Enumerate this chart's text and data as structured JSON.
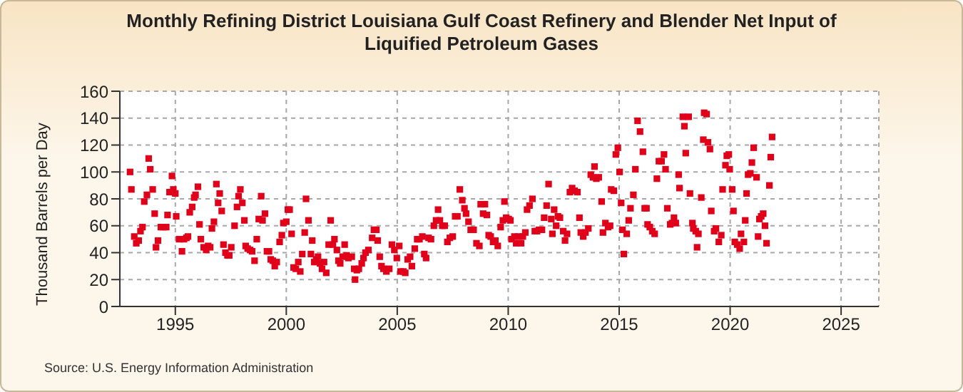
{
  "chart_data": {
    "type": "scatter",
    "title": "Monthly Refining District Louisiana Gulf Coast Refinery and Blender Net Input of Liquified Petroleum Gases",
    "ylabel": "Thousand Barrels per Day",
    "annotations": [
      "Source: U.S. Energy Information Administration"
    ],
    "color": "#e0001a",
    "marker": "square",
    "grid": true,
    "xlim": [
      1992.5,
      2026.7
    ],
    "xticks": [
      1995,
      2000,
      2005,
      2010,
      2015,
      2020,
      2025
    ],
    "ylim": [
      0,
      160
    ],
    "yticks": [
      0,
      20,
      40,
      60,
      80,
      100,
      120,
      140,
      160
    ],
    "x": [
      1992.96,
      1993.02,
      1993.15,
      1993.24,
      1993.35,
      1993.43,
      1993.52,
      1993.6,
      1993.72,
      1993.8,
      1993.87,
      1993.98,
      1994.07,
      1994.13,
      1994.22,
      1994.35,
      1994.46,
      1994.59,
      1994.65,
      1994.74,
      1994.85,
      1994.91,
      1995.0,
      1995.04,
      1995.17,
      1995.3,
      1995.39,
      1995.5,
      1995.57,
      1995.65,
      1995.76,
      1995.85,
      1995.91,
      1996.02,
      1996.09,
      1996.15,
      1996.28,
      1996.39,
      1996.48,
      1996.57,
      1996.65,
      1996.74,
      1996.85,
      1996.93,
      1997.0,
      1997.09,
      1997.17,
      1997.26,
      1997.35,
      1997.43,
      1997.52,
      1997.67,
      1997.78,
      1997.85,
      1997.93,
      1998.02,
      1998.11,
      1998.17,
      1998.26,
      1998.37,
      1998.46,
      1998.57,
      1998.67,
      1998.76,
      1998.87,
      1998.93,
      1999.04,
      1999.13,
      1999.22,
      1999.3,
      1999.39,
      1999.48,
      1999.57,
      1999.7,
      1999.8,
      1999.87,
      2000.0,
      2000.07,
      2000.15,
      2000.24,
      2000.33,
      2000.43,
      2000.54,
      2000.63,
      2000.72,
      2000.83,
      2000.89,
      2001.0,
      2001.11,
      2001.17,
      2001.26,
      2001.35,
      2001.43,
      2001.52,
      2001.61,
      2001.7,
      2001.8,
      2001.91,
      2002.0,
      2002.1,
      2002.17,
      2002.28,
      2002.35,
      2002.43,
      2002.54,
      2002.63,
      2002.72,
      2002.8,
      2002.95,
      2003.06,
      2003.1,
      2003.18,
      2003.27,
      2003.4,
      2003.48,
      2003.57,
      2003.7,
      2003.87,
      2003.95,
      2004.06,
      2004.12,
      2004.21,
      2004.29,
      2004.38,
      2004.51,
      2004.64,
      2004.76,
      2004.87,
      2004.98,
      2005.09,
      2005.15,
      2005.28,
      2005.36,
      2005.47,
      2005.58,
      2005.66,
      2005.79,
      2005.9,
      2006.0,
      2006.13,
      2006.22,
      2006.3,
      2006.41,
      2006.52,
      2006.65,
      2006.75,
      2006.84,
      2006.92,
      2007.03,
      2007.14,
      2007.26,
      2007.37,
      2007.5,
      2007.61,
      2007.71,
      2007.82,
      2007.93,
      2008.03,
      2008.1,
      2008.21,
      2008.31,
      2008.44,
      2008.57,
      2008.7,
      2008.76,
      2008.87,
      2008.95,
      2009.04,
      2009.12,
      2009.21,
      2009.32,
      2009.42,
      2009.53,
      2009.66,
      2009.76,
      2009.83,
      2009.91,
      2010.02,
      2010.1,
      2010.15,
      2010.28,
      2010.36,
      2010.47,
      2010.58,
      2010.66,
      2010.77,
      2010.85,
      2010.96,
      2011.09,
      2011.2,
      2011.3,
      2011.39,
      2011.52,
      2011.62,
      2011.73,
      2011.82,
      2011.94,
      2011.99,
      2012.07,
      2012.16,
      2012.24,
      2012.33,
      2012.48,
      2012.56,
      2012.65,
      2012.78,
      2012.88,
      2012.99,
      2013.12,
      2013.21,
      2013.27,
      2013.38,
      2013.48,
      2013.61,
      2013.72,
      2013.82,
      2013.89,
      2013.97,
      2014.08,
      2014.21,
      2014.27,
      2014.38,
      2014.5,
      2014.59,
      2014.64,
      2014.76,
      2014.85,
      2014.94,
      2015.02,
      2015.09,
      2015.15,
      2015.21,
      2015.34,
      2015.43,
      2015.51,
      2015.64,
      2015.73,
      2015.83,
      2015.94,
      2016.07,
      2016.15,
      2016.23,
      2016.28,
      2016.38,
      2016.49,
      2016.6,
      2016.7,
      2016.79,
      2016.91,
      2017.02,
      2017.09,
      2017.17,
      2017.3,
      2017.38,
      2017.47,
      2017.55,
      2017.68,
      2017.72,
      2017.87,
      2017.94,
      2018.0,
      2018.13,
      2018.19,
      2018.3,
      2018.34,
      2018.45,
      2018.51,
      2018.57,
      2018.7,
      2018.79,
      2018.83,
      2018.94,
      2019.0,
      2019.09,
      2019.15,
      2019.28,
      2019.36,
      2019.49,
      2019.6,
      2019.66,
      2019.79,
      2019.85,
      2019.94,
      2019.98,
      2020.09,
      2020.15,
      2020.21,
      2020.32,
      2020.43,
      2020.49,
      2020.62,
      2020.68,
      2020.74,
      2020.81,
      2020.91,
      2020.98,
      2021.06,
      2021.19,
      2021.26,
      2021.32,
      2021.4,
      2021.49,
      2021.57,
      2021.64,
      2021.77,
      2021.83,
      2021.89
    ],
    "values": [
      100,
      87,
      52,
      47,
      49,
      56,
      59,
      78,
      83,
      110,
      102,
      87,
      69,
      44,
      49,
      59,
      59,
      59,
      68,
      85,
      97,
      87,
      84,
      67,
      50,
      41,
      50,
      51,
      52,
      70,
      74,
      81,
      83,
      89,
      61,
      50,
      44,
      42,
      45,
      44,
      58,
      63,
      91,
      77,
      84,
      71,
      46,
      40,
      38,
      38,
      44,
      60,
      74,
      82,
      87,
      77,
      64,
      45,
      43,
      42,
      41,
      34,
      50,
      65,
      82,
      64,
      69,
      41,
      41,
      35,
      34,
      30,
      33,
      48,
      53,
      62,
      63,
      72,
      72,
      54,
      29,
      28,
      33,
      26,
      39,
      55,
      80,
      64,
      39,
      49,
      33,
      35,
      37,
      32,
      28,
      33,
      25,
      46,
      64,
      46,
      50,
      42,
      34,
      32,
      37,
      46,
      38,
      36,
      37,
      28,
      20,
      27,
      28,
      32,
      36,
      40,
      42,
      51,
      57,
      57,
      49,
      37,
      30,
      28,
      26,
      28,
      46,
      42,
      36,
      45,
      26,
      26,
      25,
      35,
      37,
      30,
      43,
      50,
      50,
      52,
      39,
      36,
      51,
      50,
      60,
      64,
      72,
      64,
      60,
      60,
      48,
      51,
      52,
      67,
      67,
      87,
      79,
      73,
      69,
      63,
      57,
      57,
      47,
      45,
      76,
      69,
      76,
      68,
      53,
      52,
      48,
      49,
      45,
      59,
      64,
      78,
      66,
      65,
      64,
      50,
      52,
      47,
      52,
      47,
      52,
      55,
      72,
      75,
      80,
      56,
      56,
      57,
      57,
      66,
      75,
      91,
      65,
      54,
      72,
      60,
      67,
      66,
      56,
      49,
      54,
      85,
      88,
      86,
      85,
      66,
      55,
      52,
      55,
      58,
      98,
      96,
      104,
      95,
      96,
      78,
      55,
      62,
      59,
      60,
      87,
      86,
      113,
      118,
      100,
      77,
      57,
      39,
      54,
      64,
      73,
      83,
      102,
      138,
      130,
      115,
      73,
      73,
      61,
      59,
      56,
      54,
      95,
      108,
      108,
      113,
      102,
      73,
      61,
      62,
      66,
      62,
      98,
      88,
      141,
      134,
      114,
      141,
      84,
      62,
      58,
      56,
      44,
      54,
      81,
      124,
      144,
      143,
      122,
      117,
      71,
      56,
      58,
      48,
      53,
      87,
      105,
      112,
      113,
      102,
      87,
      71,
      48,
      46,
      43,
      54,
      48,
      64,
      84,
      98,
      99,
      107,
      118,
      96,
      52,
      65,
      67,
      69,
      60,
      47,
      90,
      111,
      126
    ]
  }
}
